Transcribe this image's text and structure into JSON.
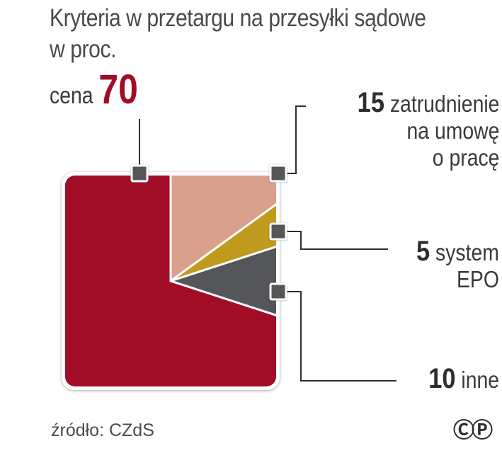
{
  "title_line1": "Kryteria w przetargu na przesyłki sądowe",
  "title_line2": "w proc.",
  "source": "źródło: CZdS",
  "logo": "©P",
  "chart_data": {
    "type": "pie",
    "shape": "rounded-square",
    "start": "top",
    "direction": "clockwise",
    "slices": [
      {
        "label_lines": [
          "zatrudnienie",
          "na umowę",
          "o pracę"
        ],
        "value": 15,
        "color": "#d9a18b"
      },
      {
        "label_lines": [
          "system",
          "EPO"
        ],
        "value": 5,
        "color": "#c09a1d"
      },
      {
        "label_lines": [
          "inne"
        ],
        "value": 10,
        "color": "#555659"
      },
      {
        "label_lines": [
          "cena"
        ],
        "value": 70,
        "color": "#a10d27"
      }
    ]
  }
}
